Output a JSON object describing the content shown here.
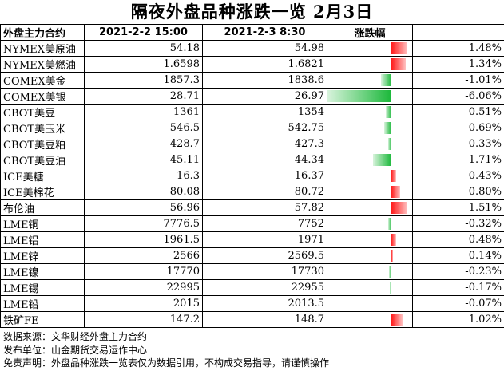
{
  "title": "隔夜外盘品种涨跌一览 2月3日",
  "headers": [
    "外盘主力合约",
    "2021-2-2 15:00",
    "2021-2-3 8:30",
    "涨跌幅",
    ""
  ],
  "rows": [
    {
      "name": "NYMEX美原油",
      "prev": "54.18",
      "curr": "54.98",
      "pct": "1.48%"
    },
    {
      "name": "NYMEX美燃油",
      "prev": "1.6598",
      "curr": "1.6821",
      "pct": "1.34%"
    },
    {
      "name": "COMEX美金",
      "prev": "1857.3",
      "curr": "1838.6",
      "pct": "-1.01%"
    },
    {
      "name": "COMEX美银",
      "prev": "28.71",
      "curr": "26.97",
      "pct": "-6.06%"
    },
    {
      "name": "CBOT美豆",
      "prev": "1361",
      "curr": "1354",
      "pct": "-0.51%"
    },
    {
      "name": "CBOT美玉米",
      "prev": "546.5",
      "curr": "542.75",
      "pct": "-0.69%"
    },
    {
      "name": "CBOT美豆粕",
      "prev": "428.7",
      "curr": "427.3",
      "pct": "-0.33%"
    },
    {
      "name": "CBOT美豆油",
      "prev": "45.11",
      "curr": "44.34",
      "pct": "-1.71%"
    },
    {
      "name": "ICE美糖",
      "prev": "16.3",
      "curr": "16.37",
      "pct": "0.43%"
    },
    {
      "name": "ICE美棉花",
      "prev": "80.08",
      "curr": "80.72",
      "pct": "0.80%"
    },
    {
      "name": "布伦油",
      "prev": "56.96",
      "curr": "57.82",
      "pct": "1.51%"
    },
    {
      "name": "LME铜",
      "prev": "7776.5",
      "curr": "7752",
      "pct": "-0.32%"
    },
    {
      "name": "LME铝",
      "prev": "1961.5",
      "curr": "1971",
      "pct": "0.48%"
    },
    {
      "name": "LME锌",
      "prev": "2566",
      "curr": "2569.5",
      "pct": "0.14%"
    },
    {
      "name": "LME镍",
      "prev": "17770",
      "curr": "17730",
      "pct": "-0.23%"
    },
    {
      "name": "LME锡",
      "prev": "22995",
      "curr": "22955",
      "pct": "-0.17%"
    },
    {
      "name": "LME铅",
      "prev": "2015",
      "curr": "2013.5",
      "pct": "-0.07%"
    },
    {
      "name": "铁矿FE",
      "prev": "147.2",
      "curr": "148.7",
      "pct": "1.02%"
    }
  ],
  "notes": [
    "数据来源：文华财经外盘主力合约",
    "发布单位：山金期货交易运作中心",
    "免责声明：外盘品种涨跌一览表仅为数据引用，不构成交易指导，请谨慎操作"
  ],
  "colors": {
    "up": "#ff1a1a",
    "down": "#1bb83a"
  },
  "chart_data": {
    "type": "bar",
    "orientation": "horizontal",
    "title": "隔夜外盘品种涨跌一览 2月3日",
    "categories": [
      "NYMEX美原油",
      "NYMEX美燃油",
      "COMEX美金",
      "COMEX美银",
      "CBOT美豆",
      "CBOT美玉米",
      "CBOT美豆粕",
      "CBOT美豆油",
      "ICE美糖",
      "ICE美棉花",
      "布伦油",
      "LME铜",
      "LME铝",
      "LME锌",
      "LME镍",
      "LME锡",
      "LME铅",
      "铁矿FE"
    ],
    "values": [
      1.48,
      1.34,
      -1.01,
      -6.06,
      -0.51,
      -0.69,
      -0.33,
      -1.71,
      0.43,
      0.8,
      1.51,
      -0.32,
      0.48,
      0.14,
      -0.23,
      -0.17,
      -0.07,
      1.02
    ],
    "unit": "%",
    "axis_range": [
      -6.06,
      2.0
    ]
  }
}
